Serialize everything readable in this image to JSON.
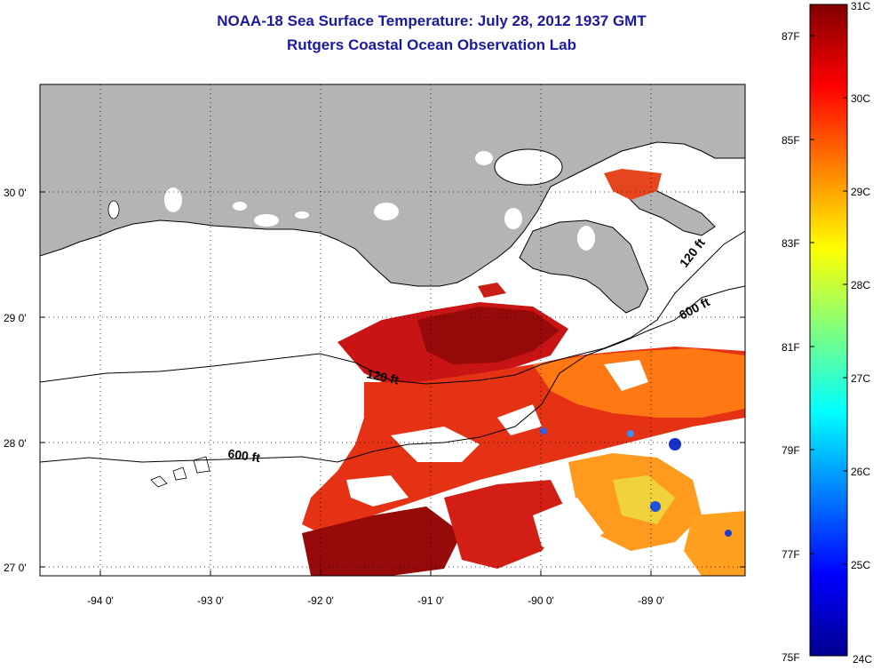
{
  "title": {
    "line1": "NOAA-18 Sea Surface Temperature:  July 28, 2012 1937 GMT",
    "line2": "Rutgers Coastal Ocean Observation Lab"
  },
  "map": {
    "lat_ticks": [
      "30 0'",
      "29 0'",
      "28 0'",
      "27 0'"
    ],
    "lon_ticks": [
      "-94 0'",
      "-93 0'",
      "-92 0'",
      "-91 0'",
      "-90 0'",
      "-89 0'"
    ],
    "contour_labels": [
      "120 ft",
      "120 ft",
      "600 ft",
      "600 ft"
    ],
    "land_color": "#b4b4b4",
    "cloud_color": "#ffffff"
  },
  "colorbar": {
    "celsius_labels": [
      "31C",
      "30C",
      "29C",
      "28C",
      "27C",
      "26C",
      "25C",
      "24C"
    ],
    "fahrenheit_labels": [
      "87F",
      "85F",
      "83F",
      "81F",
      "79F",
      "77F",
      "75F"
    ],
    "range_c": [
      24,
      31
    ]
  }
}
